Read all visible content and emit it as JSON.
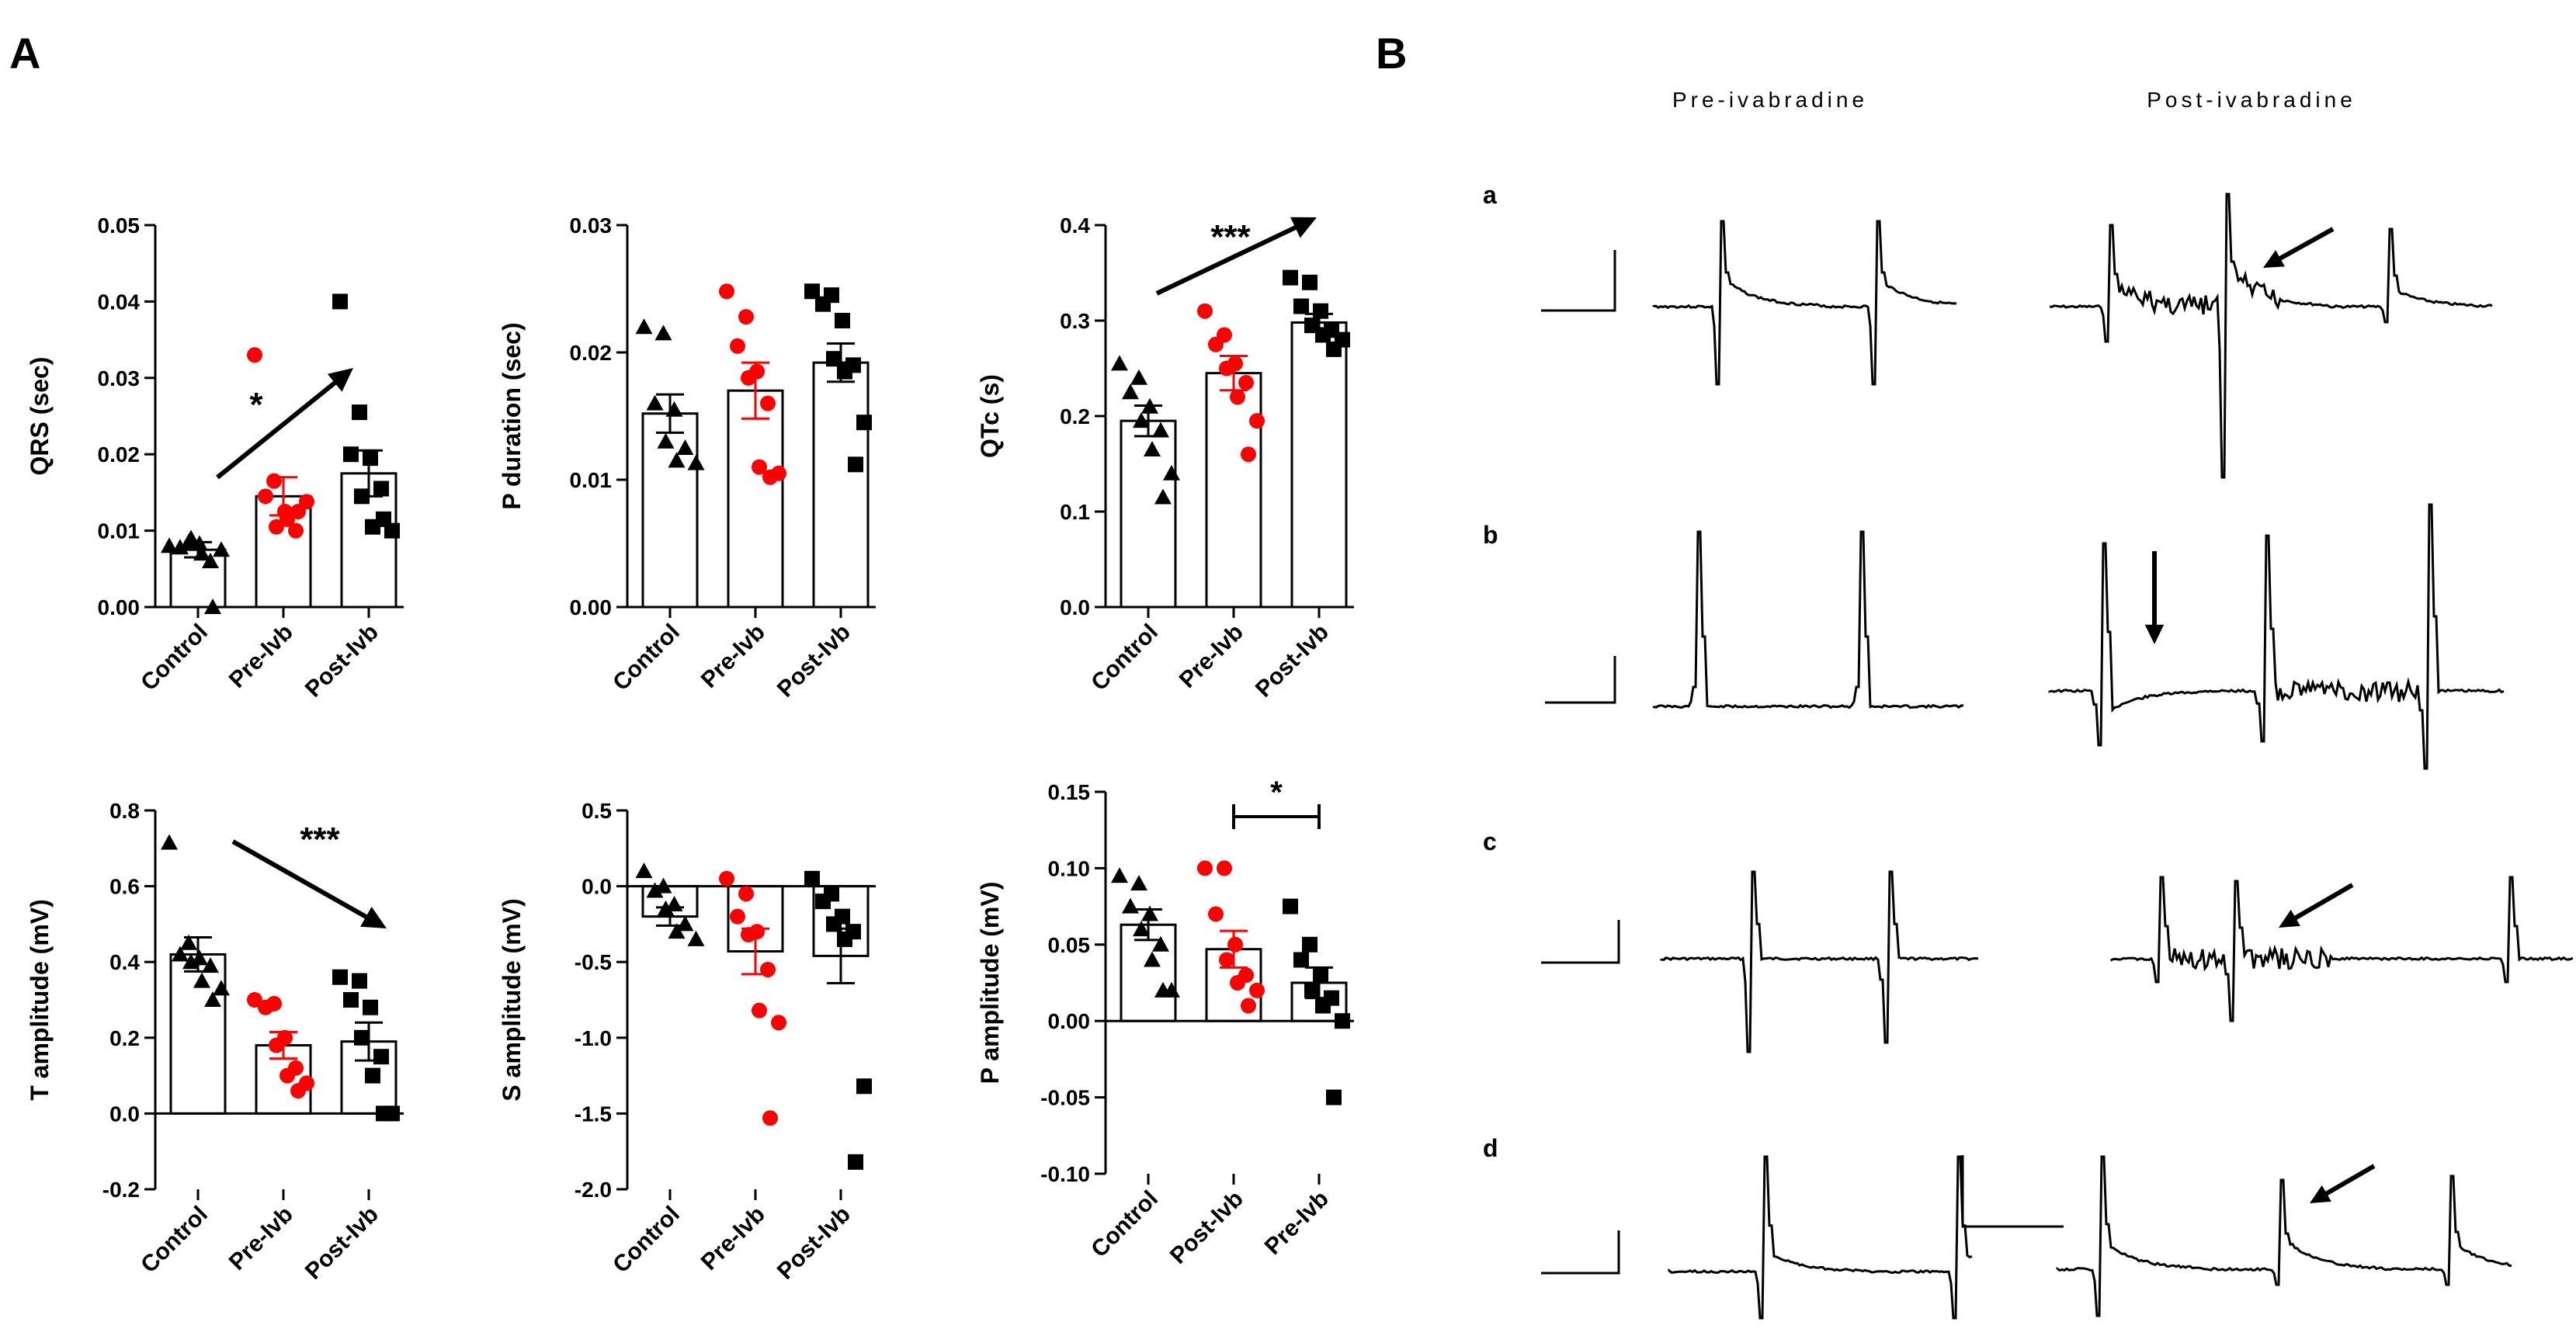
{
  "panel_labels": {
    "a": "A",
    "b": "B"
  },
  "ecg_titles": {
    "pre": "Pre-ivabradine",
    "post": "Post-ivabradine"
  },
  "ecg_rows": [
    "a",
    "b",
    "c",
    "d"
  ],
  "colors": {
    "control": "#000000",
    "pre": "#ff0000",
    "post": "#000000",
    "axis": "#000000"
  },
  "chart_data": [
    {
      "id": "qrs",
      "type": "bar",
      "ylabel": "QRS (sec)",
      "categories": [
        "Control",
        "Pre-Ivb",
        "Post-Ivb"
      ],
      "values": [
        0.0075,
        0.0145,
        0.0175
      ],
      "errors": [
        0.001,
        0.0025,
        0.003
      ],
      "ylim": [
        0,
        0.05
      ],
      "yticks": [
        0,
        0.01,
        0.02,
        0.03,
        0.04,
        0.05
      ],
      "yticklabels": [
        "0.00",
        "0.01",
        "0.02",
        "0.03",
        "0.04",
        "0.05"
      ],
      "points": [
        [
          0.008,
          0.0085,
          0.0078,
          0.0083,
          0.009,
          0.006,
          0.007,
          0.0075,
          0.0
        ],
        [
          0.033,
          0.0165,
          0.0145,
          0.0125,
          0.0105,
          0.01,
          0.0115,
          0.0138,
          0.0125
        ],
        [
          0.04,
          0.0255,
          0.02,
          0.0195,
          0.0145,
          0.0155,
          0.0105,
          0.01,
          0.0115
        ]
      ],
      "markers": [
        "triangle",
        "circle",
        "square"
      ],
      "annotation": {
        "kind": "arrow",
        "text": "*"
      }
    },
    {
      "id": "pdur",
      "type": "bar",
      "ylabel": "P duration (sec)",
      "categories": [
        "Control",
        "Pre-Ivb",
        "Post-Ivb"
      ],
      "values": [
        0.0152,
        0.017,
        0.0192
      ],
      "errors": [
        0.0015,
        0.0022,
        0.0015
      ],
      "ylim": [
        0,
        0.03
      ],
      "yticks": [
        0,
        0.01,
        0.02,
        0.03
      ],
      "yticklabels": [
        "0.00",
        "0.01",
        "0.02",
        "0.03"
      ],
      "points": [
        [
          0.022,
          0.0215,
          0.016,
          0.0155,
          0.013,
          0.0125,
          0.0115,
          0.0113
        ],
        [
          0.0248,
          0.0228,
          0.0205,
          0.0185,
          0.018,
          0.016,
          0.011,
          0.0105,
          0.0102
        ],
        [
          0.0248,
          0.0245,
          0.0238,
          0.0225,
          0.0195,
          0.019,
          0.0185,
          0.0145,
          0.0112
        ]
      ],
      "markers": [
        "triangle",
        "circle",
        "square"
      ]
    },
    {
      "id": "qtc",
      "type": "bar",
      "ylabel": "QTc (s)",
      "categories": [
        "Control",
        "Pre-Ivb",
        "Post-Ivb"
      ],
      "values": [
        0.195,
        0.245,
        0.298
      ],
      "errors": [
        0.016,
        0.018,
        0.009
      ],
      "ylim": [
        0,
        0.4
      ],
      "yticks": [
        0,
        0.1,
        0.2,
        0.3,
        0.4
      ],
      "yticklabels": [
        "0.0",
        "0.1",
        "0.2",
        "0.3",
        "0.4"
      ],
      "points": [
        [
          0.255,
          0.24,
          0.225,
          0.21,
          0.195,
          0.185,
          0.165,
          0.14,
          0.115
        ],
        [
          0.31,
          0.285,
          0.275,
          0.255,
          0.25,
          0.235,
          0.22,
          0.195,
          0.16
        ],
        [
          0.345,
          0.34,
          0.315,
          0.31,
          0.295,
          0.29,
          0.285,
          0.28,
          0.27
        ]
      ],
      "markers": [
        "triangle",
        "circle",
        "square"
      ],
      "annotation": {
        "kind": "arrow",
        "text": "***"
      }
    },
    {
      "id": "tamp",
      "type": "bar",
      "ylabel": "T amplitude (mV)",
      "categories": [
        "Control",
        "Pre-Ivb",
        "Post-Ivb"
      ],
      "values": [
        0.42,
        0.18,
        0.19
      ],
      "errors": [
        0.045,
        0.035,
        0.05
      ],
      "ylim": [
        -0.2,
        0.8
      ],
      "yticks": [
        -0.2,
        0,
        0.2,
        0.4,
        0.6,
        0.8
      ],
      "yticklabels": [
        "-0.2",
        "0.0",
        "0.2",
        "0.4",
        "0.6",
        "0.8"
      ],
      "points": [
        [
          0.715,
          0.45,
          0.42,
          0.41,
          0.4,
          0.39,
          0.35,
          0.33,
          0.3
        ],
        [
          0.3,
          0.29,
          0.28,
          0.2,
          0.18,
          0.12,
          0.1,
          0.08,
          0.06
        ],
        [
          0.36,
          0.35,
          0.3,
          0.28,
          0.2,
          0.15,
          0.1,
          0.0,
          0.0
        ]
      ],
      "markers": [
        "triangle",
        "circle",
        "square"
      ],
      "annotation": {
        "kind": "arrow",
        "text": "***"
      }
    },
    {
      "id": "samp",
      "type": "bar",
      "ylabel": "S amplitude (mV)",
      "categories": [
        "Control",
        "Pre-Ivb",
        "Post-Ivb"
      ],
      "values": [
        -0.2,
        -0.43,
        -0.46
      ],
      "errors": [
        0.06,
        0.15,
        0.18
      ],
      "ylim": [
        -2.0,
        0.5
      ],
      "yticks": [
        -2.0,
        -1.5,
        -1.0,
        -0.5,
        0,
        0.5
      ],
      "yticklabels": [
        "-2.0",
        "-1.5",
        "-1.0",
        "-0.5",
        "0.0",
        "0.5"
      ],
      "points": [
        [
          0.1,
          0.0,
          -0.03,
          -0.12,
          -0.15,
          -0.25,
          -0.3,
          -0.35
        ],
        [
          0.05,
          -0.05,
          -0.2,
          -0.3,
          -0.32,
          -0.55,
          -0.82,
          -0.9,
          -1.53
        ],
        [
          0.05,
          -0.05,
          -0.1,
          -0.2,
          -0.25,
          -0.3,
          -0.35,
          -1.32,
          -1.82
        ]
      ],
      "markers": [
        "triangle",
        "circle",
        "square"
      ]
    },
    {
      "id": "pamp",
      "type": "bar",
      "ylabel": "P amplitude (mV)",
      "categories": [
        "Control",
        "Post-Ivb",
        "Pre-Ivb"
      ],
      "values": [
        0.063,
        0.047,
        0.025
      ],
      "errors": [
        0.01,
        0.012,
        0.01
      ],
      "ylim": [
        -0.1,
        0.15
      ],
      "yticks": [
        -0.1,
        -0.05,
        0,
        0.05,
        0.1,
        0.15
      ],
      "yticklabels": [
        "-0.10",
        "-0.05",
        "0.00",
        "0.05",
        "0.10",
        "0.15"
      ],
      "points": [
        [
          0.095,
          0.09,
          0.075,
          0.07,
          0.06,
          0.05,
          0.04,
          0.02,
          0.02
        ],
        [
          0.1,
          0.1,
          0.07,
          0.05,
          0.04,
          0.03,
          0.025,
          0.02,
          0.01
        ],
        [
          0.075,
          0.05,
          0.04,
          0.03,
          0.02,
          0.015,
          0.01,
          0.0,
          -0.05
        ]
      ],
      "markers": [
        "triangle",
        "circle",
        "square"
      ],
      "annotation": {
        "kind": "bracket",
        "text": "*",
        "from": 1,
        "to": 2
      }
    }
  ]
}
